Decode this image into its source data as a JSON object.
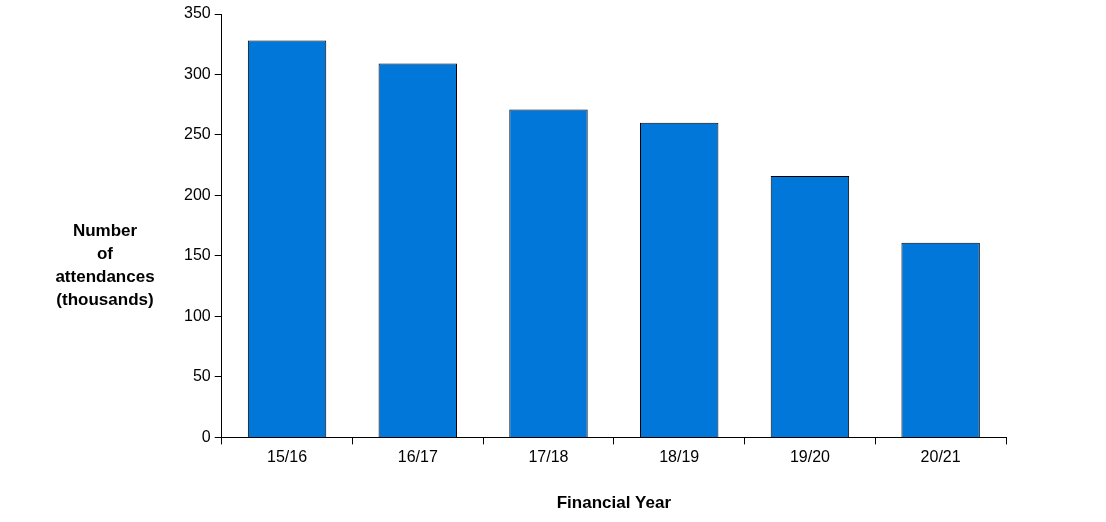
{
  "chart_data": {
    "type": "bar",
    "ylabel": "Number of attendances (thousands)",
    "xlabel": "Financial Year",
    "categories": [
      "15/16",
      "16/17",
      "17/18",
      "18/19",
      "19/20",
      "20/21"
    ],
    "values": [
      328,
      309,
      271,
      260,
      216,
      161
    ],
    "color": "#0077d9",
    "ylim": [
      0,
      350
    ],
    "yticks": [
      0,
      50,
      100,
      150,
      200,
      250,
      300,
      350
    ],
    "grid": false
  }
}
